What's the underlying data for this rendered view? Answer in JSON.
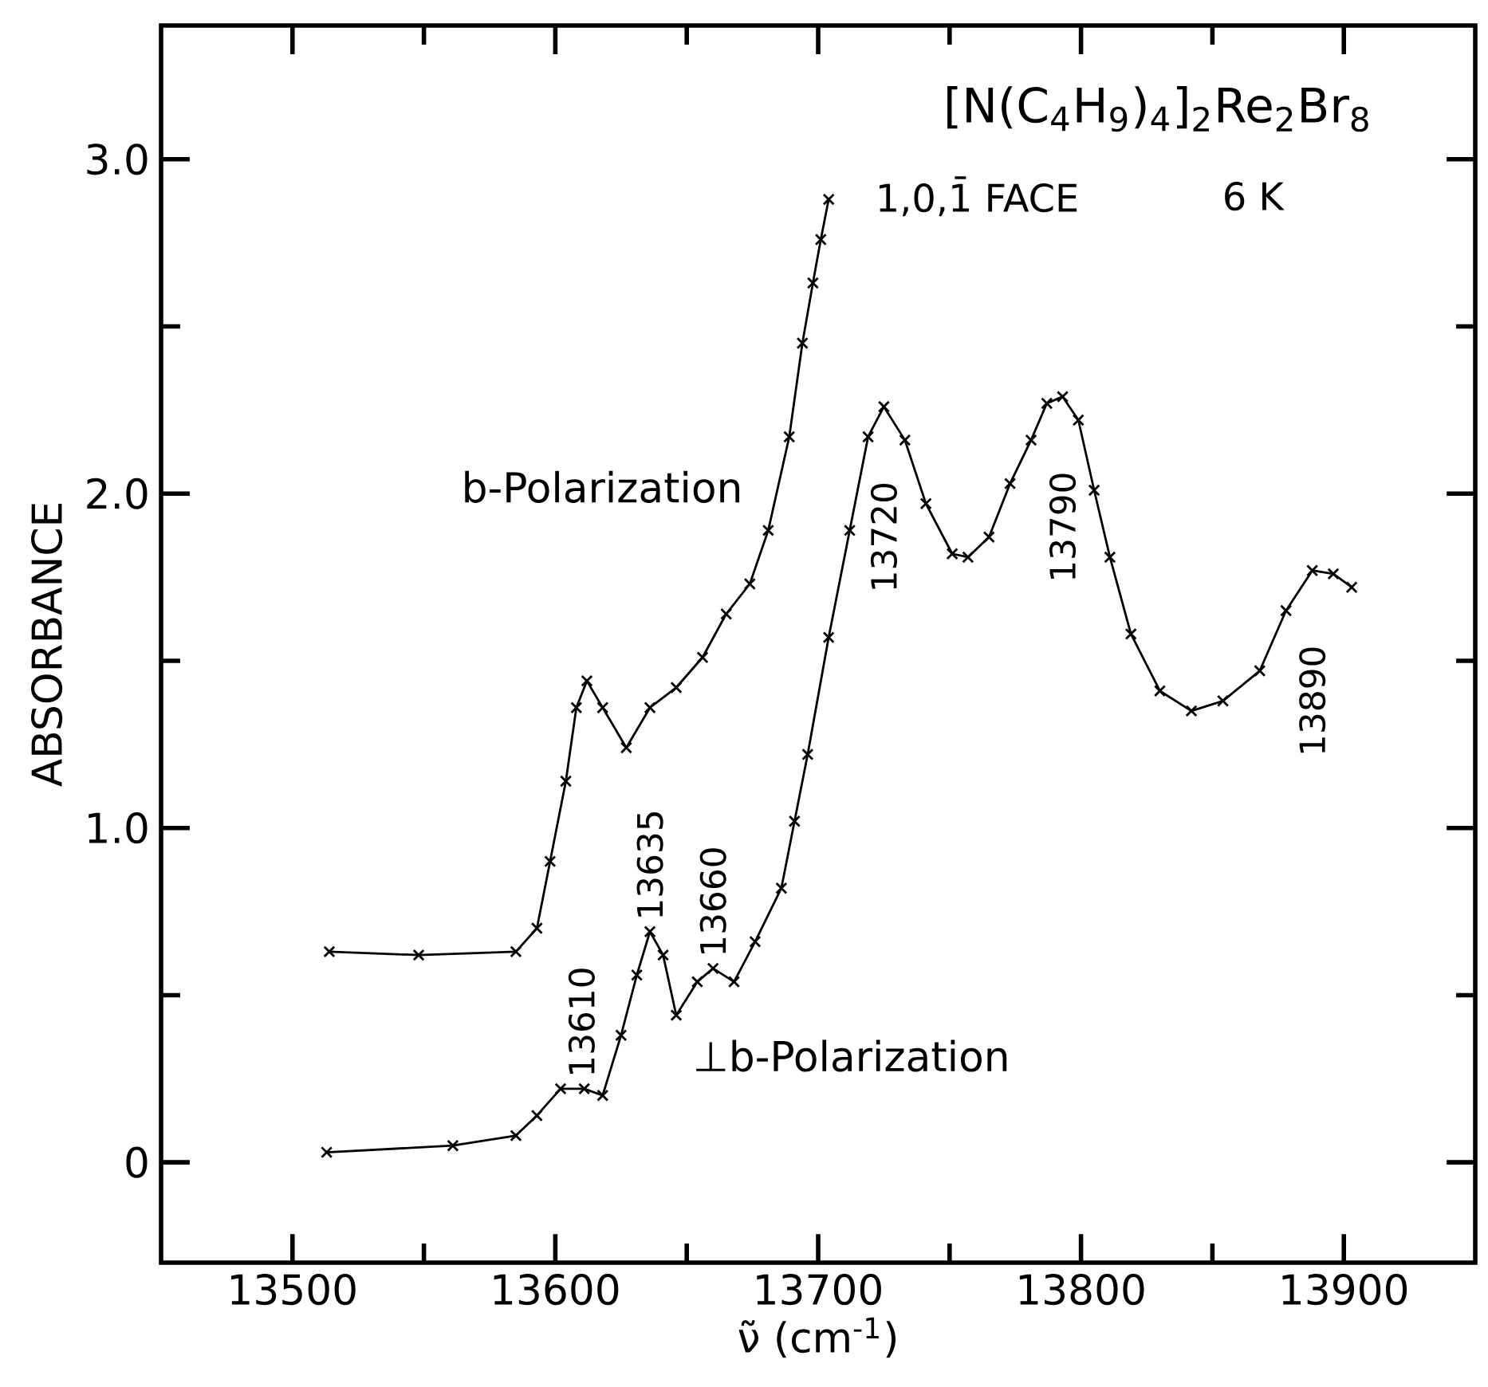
{
  "chart_data": {
    "type": "line",
    "title": "[N(C$_{4}$H$_{9}$)$_{4}$]$_{2}$Re$_{2}$Br$_{8}$",
    "subtitle": "1,0,1̄ FACE",
    "xlabel": "ν̃  (cm$^{-1}$)",
    "ylabel": "ABSORBANCE",
    "marker": "cross",
    "line_style": "solid",
    "annotations": [
      "6 K",
      {
        "text": "13610",
        "x": 13610,
        "y": 0.22
      },
      {
        "text": "13635",
        "x": 13636,
        "y": 0.69
      },
      {
        "text": "13660",
        "x": 13660,
        "y": 0.58
      },
      {
        "text": "13720",
        "x": 13725,
        "y": 2.26
      },
      {
        "text": "13790",
        "x": 13793,
        "y": 2.29
      },
      {
        "text": "13890",
        "x": 13888,
        "y": 1.77
      }
    ],
    "xlim": [
      13450,
      13950
    ],
    "ylim": [
      -0.3,
      3.4
    ],
    "xticks": [
      13500,
      13600,
      13700,
      13800,
      13900
    ],
    "yticks": [
      0,
      {
        "value": 1,
        "label": "1.0"
      },
      {
        "value": 2,
        "label": "2.0"
      },
      {
        "value": 3,
        "label": "3.0"
      }
    ],
    "series": [
      {
        "name": "b-Polarization",
        "color": "#000000",
        "x": [
          13514,
          13548,
          13585,
          13593,
          13598,
          13604,
          13608,
          13612,
          13618,
          13627,
          13636,
          13646,
          13656,
          13665,
          13674,
          13681,
          13689,
          13694,
          13698,
          13701,
          13704
        ],
        "values": [
          0.63,
          0.62,
          0.63,
          0.7,
          0.9,
          1.14,
          1.36,
          1.44,
          1.36,
          1.24,
          1.36,
          1.42,
          1.51,
          1.64,
          1.73,
          1.89,
          2.17,
          2.45,
          2.63,
          2.76,
          2.88
        ]
      },
      {
        "name": "⊥b-Polarization",
        "color": "#000000",
        "x": [
          13513,
          13561,
          13585,
          13593,
          13602,
          13611,
          13618,
          13625,
          13631,
          13636,
          13641,
          13646,
          13654,
          13660,
          13668,
          13676,
          13686,
          13691,
          13696,
          13704,
          13712,
          13719,
          13725,
          13733,
          13741,
          13751,
          13757,
          13765,
          13773,
          13781,
          13787,
          13793,
          13799,
          13805,
          13811,
          13819,
          13830,
          13842,
          13854,
          13868,
          13878,
          13888,
          13896,
          13903
        ],
        "values": [
          0.03,
          0.05,
          0.08,
          0.14,
          0.22,
          0.22,
          0.2,
          0.38,
          0.56,
          0.69,
          0.62,
          0.44,
          0.54,
          0.58,
          0.54,
          0.66,
          0.82,
          1.02,
          1.22,
          1.57,
          1.89,
          2.17,
          2.26,
          2.16,
          1.97,
          1.82,
          1.81,
          1.87,
          2.03,
          2.16,
          2.27,
          2.29,
          2.22,
          2.01,
          1.81,
          1.58,
          1.41,
          1.35,
          1.38,
          1.47,
          1.65,
          1.77,
          1.76,
          1.72
        ]
      }
    ]
  }
}
